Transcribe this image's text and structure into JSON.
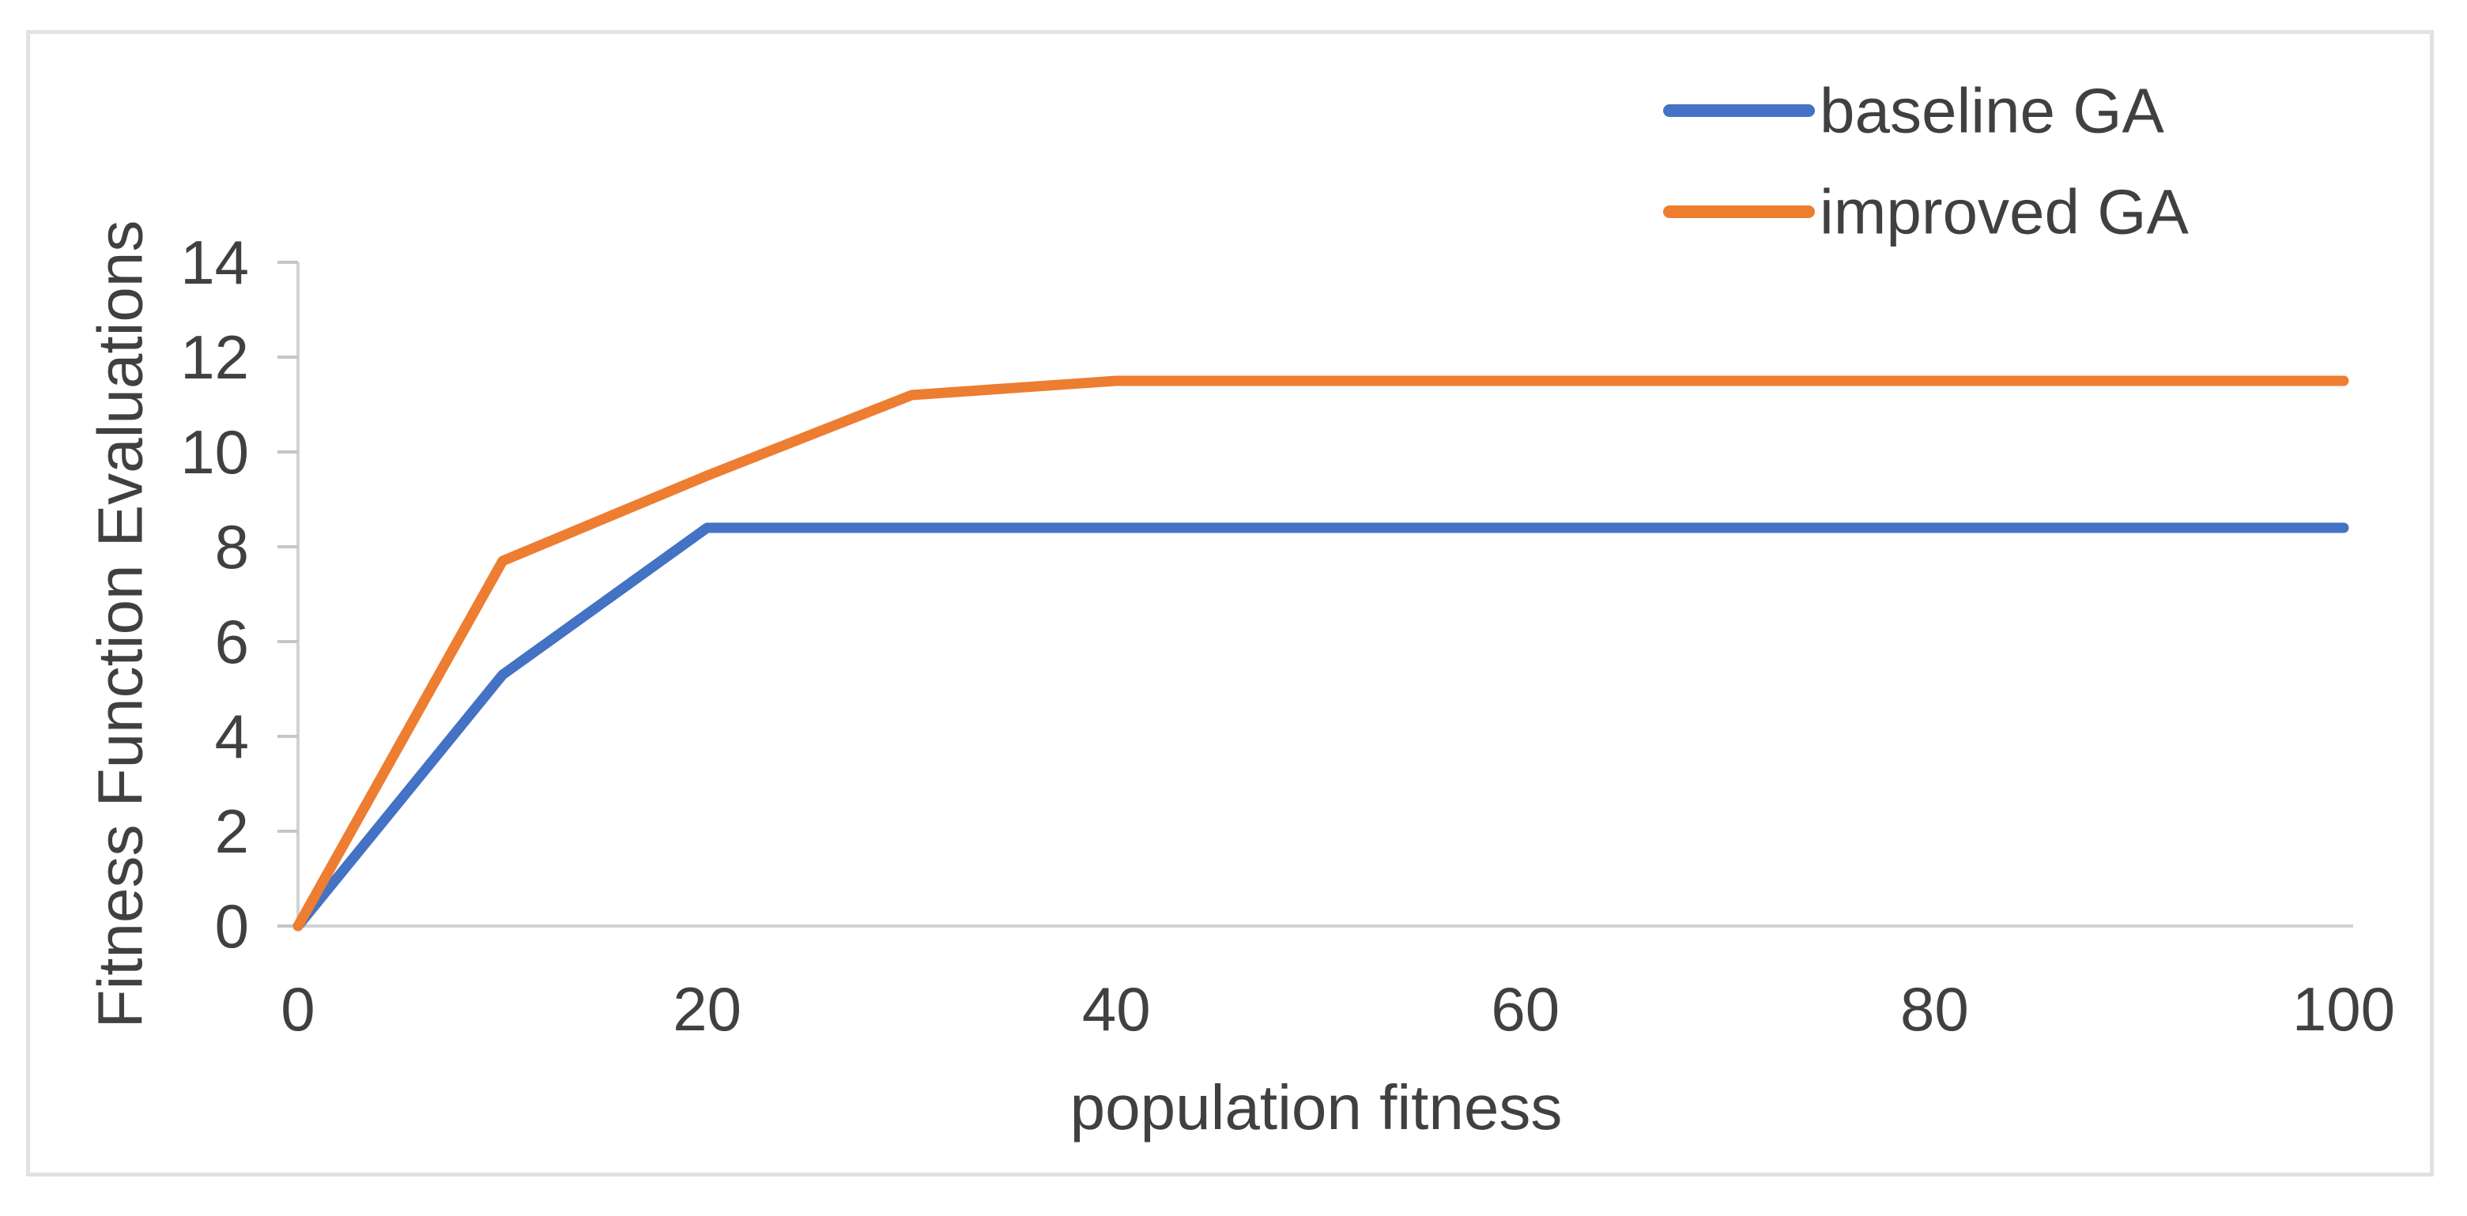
{
  "chart_data": {
    "type": "line",
    "title": "",
    "xlabel": "population fitness",
    "ylabel": "Fitness Function Evaluations",
    "x": [
      0,
      10,
      20,
      30,
      40,
      50,
      60,
      70,
      80,
      90,
      100
    ],
    "series": [
      {
        "name": "baseline GA",
        "color": "#4472C4",
        "values": [
          0,
          5.3,
          8.4,
          8.4,
          8.4,
          8.4,
          8.4,
          8.4,
          8.4,
          8.4,
          8.4
        ]
      },
      {
        "name": "improved GA",
        "color": "#ED7D31",
        "values": [
          0,
          7.7,
          9.5,
          11.2,
          11.5,
          11.5,
          11.5,
          11.5,
          11.5,
          11.5,
          11.5
        ]
      }
    ],
    "xlim": [
      0,
      100
    ],
    "ylim": [
      0,
      14
    ],
    "x_ticks": [
      0,
      20,
      40,
      60,
      80,
      100
    ],
    "y_ticks": [
      0,
      2,
      4,
      6,
      8,
      10,
      12,
      14
    ],
    "grid": false,
    "legend_position": "top-right"
  },
  "colors": {
    "background": "#FFFFFF",
    "frame_border": "#E2E2E2",
    "axis_line": "#D2D2D2",
    "tick_mark": "#C6C6C6",
    "text": "#404040"
  }
}
